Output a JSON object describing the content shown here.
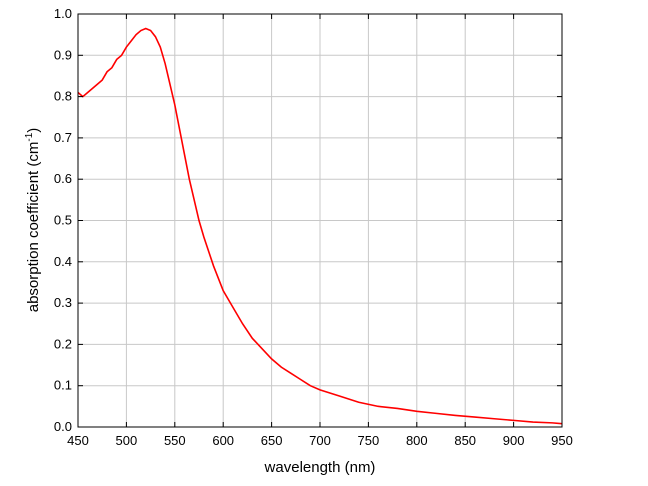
{
  "chart_data": {
    "type": "line",
    "x_label": "wavelength (nm)",
    "y_label": {
      "text": "absorption coefficient (cm",
      "superscript": "-1",
      "suffix": ")"
    },
    "x": [
      450,
      455,
      460,
      465,
      470,
      475,
      480,
      485,
      490,
      495,
      500,
      505,
      510,
      515,
      520,
      525,
      530,
      535,
      540,
      545,
      550,
      555,
      560,
      565,
      570,
      575,
      580,
      590,
      600,
      610,
      620,
      630,
      640,
      650,
      660,
      670,
      680,
      690,
      700,
      720,
      740,
      760,
      780,
      800,
      820,
      840,
      860,
      880,
      900,
      920,
      940,
      950
    ],
    "series": [
      {
        "name": "absorption",
        "color": "#ff0000",
        "values": [
          0.81,
          0.8,
          0.81,
          0.82,
          0.83,
          0.84,
          0.86,
          0.87,
          0.89,
          0.9,
          0.92,
          0.935,
          0.95,
          0.96,
          0.965,
          0.96,
          0.945,
          0.92,
          0.88,
          0.83,
          0.78,
          0.72,
          0.66,
          0.6,
          0.55,
          0.5,
          0.46,
          0.39,
          0.33,
          0.29,
          0.25,
          0.215,
          0.19,
          0.165,
          0.145,
          0.13,
          0.115,
          0.1,
          0.09,
          0.075,
          0.06,
          0.05,
          0.045,
          0.038,
          0.033,
          0.028,
          0.024,
          0.02,
          0.016,
          0.012,
          0.01,
          0.008
        ]
      }
    ],
    "xlim": [
      450,
      950
    ],
    "ylim": [
      0,
      1
    ],
    "xticks": [
      450,
      500,
      550,
      600,
      650,
      700,
      750,
      800,
      850,
      900,
      950
    ],
    "yticks": [
      {
        "value": 0,
        "label": "0.0"
      },
      0.1,
      0.2,
      0.3,
      0.4,
      0.5,
      0.6,
      0.7,
      0.8,
      0.9,
      {
        "value": 1,
        "label": "1.0"
      }
    ],
    "grid": true
  }
}
